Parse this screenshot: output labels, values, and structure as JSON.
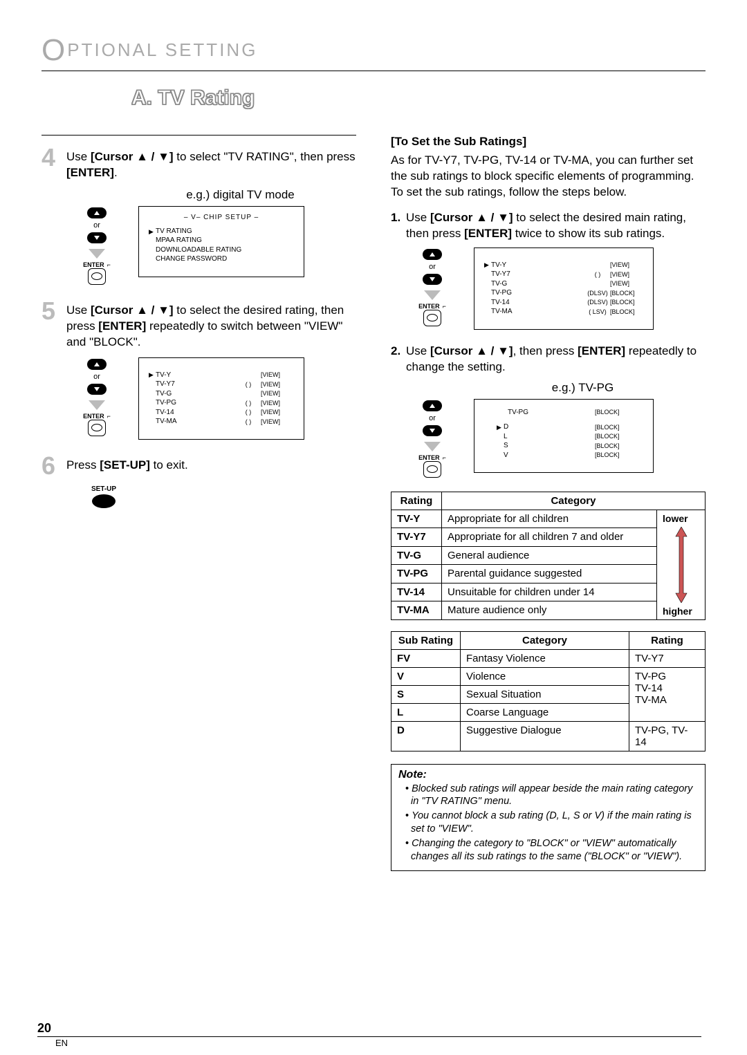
{
  "header": "PTIONAL   SETTING",
  "section_title": "A.  TV Rating",
  "left": {
    "step4": {
      "num": "4",
      "pre": "Use ",
      "bold1": "[Cursor ▲ / ▼]",
      "mid": " to select \"TV RATING\", then press ",
      "bold2": "[ENTER]",
      "post": "."
    },
    "eg1": "e.g.) digital TV mode",
    "screen1": {
      "title": "–  V– CHIP SETUP  –",
      "rows": [
        {
          "ptr": "▶",
          "lbl": "TV RATING"
        },
        {
          "ptr": "",
          "lbl": "MPAA RATING"
        },
        {
          "ptr": "",
          "lbl": "DOWNLOADABLE RATING"
        },
        {
          "ptr": "",
          "lbl": "CHANGE PASSWORD"
        }
      ]
    },
    "step5": {
      "num": "5",
      "pre": "Use ",
      "bold1": "[Cursor ▲ / ▼]",
      "mid": " to select the desired rating, then press ",
      "bold2": "[ENTER]",
      "post": " repeatedly to switch between \"VIEW\" and \"BLOCK\"."
    },
    "screen2": {
      "rows": [
        {
          "ptr": "▶",
          "lbl": "TV-Y",
          "paren": "",
          "stat": "[VIEW]"
        },
        {
          "ptr": "",
          "lbl": "TV-Y7",
          "paren": "(        )",
          "stat": "[VIEW]"
        },
        {
          "ptr": "",
          "lbl": "TV-G",
          "paren": "",
          "stat": "[VIEW]"
        },
        {
          "ptr": "",
          "lbl": "TV-PG",
          "paren": "(        )",
          "stat": "[VIEW]"
        },
        {
          "ptr": "",
          "lbl": "TV-14",
          "paren": "(        )",
          "stat": "[VIEW]"
        },
        {
          "ptr": "",
          "lbl": "TV-MA",
          "paren": "(        )",
          "stat": "[VIEW]"
        }
      ]
    },
    "step6": {
      "num": "6",
      "pre": "Press ",
      "bold1": "[SET-UP]",
      "post": " to exit."
    },
    "setup_label": "SET-UP",
    "remote": {
      "or": "or",
      "enter": "ENTER"
    }
  },
  "right": {
    "sub_head": "[To Set the Sub Ratings]",
    "para1": "As for TV-Y7, TV-PG, TV-14 or TV-MA, you can further set the sub ratings to block specific elements of programming. To set the sub ratings, follow the steps below.",
    "item1": {
      "n": "1.",
      "pre": "Use ",
      "bold1": "[Cursor ▲ / ▼]",
      "mid": " to select the desired main rating, then press ",
      "bold2": "[ENTER]",
      "post": " twice to show its sub ratings."
    },
    "screen3": {
      "rows": [
        {
          "ptr": "▶",
          "lbl": "TV-Y",
          "paren": "",
          "stat": "[VIEW]"
        },
        {
          "ptr": "",
          "lbl": "TV-Y7",
          "paren": "(        )",
          "stat": "[VIEW]"
        },
        {
          "ptr": "",
          "lbl": "TV-G",
          "paren": "",
          "stat": "[VIEW]"
        },
        {
          "ptr": "",
          "lbl": "TV-PG",
          "paren": "(DLSV)",
          "stat": "[BLOCK]"
        },
        {
          "ptr": "",
          "lbl": "TV-14",
          "paren": "(DLSV)",
          "stat": "[BLOCK]"
        },
        {
          "ptr": "",
          "lbl": "TV-MA",
          "paren": "( LSV)",
          "stat": "[BLOCK]"
        }
      ]
    },
    "item2": {
      "n": "2.",
      "pre": "Use ",
      "bold1": "[Cursor ▲ / ▼]",
      "mid": ", then press ",
      "bold2": "[ENTER]",
      "post": " repeatedly to change the setting."
    },
    "eg2": "e.g.) TV-PG",
    "screen4": {
      "head": {
        "lbl": "TV-PG",
        "stat": "[BLOCK]"
      },
      "rows": [
        {
          "ptr": "▶",
          "lbl": "D",
          "stat": "[BLOCK]"
        },
        {
          "ptr": "",
          "lbl": "L",
          "stat": "[BLOCK]"
        },
        {
          "ptr": "",
          "lbl": "S",
          "stat": "[BLOCK]"
        },
        {
          "ptr": "",
          "lbl": "V",
          "stat": "[BLOCK]"
        }
      ]
    },
    "table1": {
      "headers": [
        "Rating",
        "Category"
      ],
      "rows": [
        [
          "TV-Y",
          "Appropriate for all children"
        ],
        [
          "TV-Y7",
          "Appropriate for all children 7 and older"
        ],
        [
          "TV-G",
          "General audience"
        ],
        [
          "TV-PG",
          "Parental guidance suggested"
        ],
        [
          "TV-14",
          "Unsuitable for children under 14"
        ],
        [
          "TV-MA",
          "Mature audience only"
        ]
      ],
      "lower": "lower",
      "higher": "higher"
    },
    "table2": {
      "headers": [
        "Sub Rating",
        "Category",
        "Rating"
      ],
      "rows": [
        [
          "FV",
          "Fantasy Violence",
          "TV-Y7"
        ],
        [
          "V",
          "Violence"
        ],
        [
          "S",
          "Sexual Situation"
        ],
        [
          "L",
          "Coarse Language"
        ],
        [
          "D",
          "Suggestive Dialogue",
          "TV-PG, TV-14"
        ]
      ],
      "group": "TV-PG\nTV-14\nTV-MA"
    },
    "note": {
      "title": "Note:",
      "items": [
        "Blocked sub ratings will appear beside the main rating category in \"TV RATING\" menu.",
        "You cannot block a sub rating (D, L, S or V) if the main rating is set to \"VIEW\".",
        "Changing the category to \"BLOCK\" or \"VIEW\" automatically changes all its sub ratings to the same (\"BLOCK\" or \"VIEW\")."
      ]
    }
  },
  "page": {
    "num": "20",
    "en": "EN"
  }
}
